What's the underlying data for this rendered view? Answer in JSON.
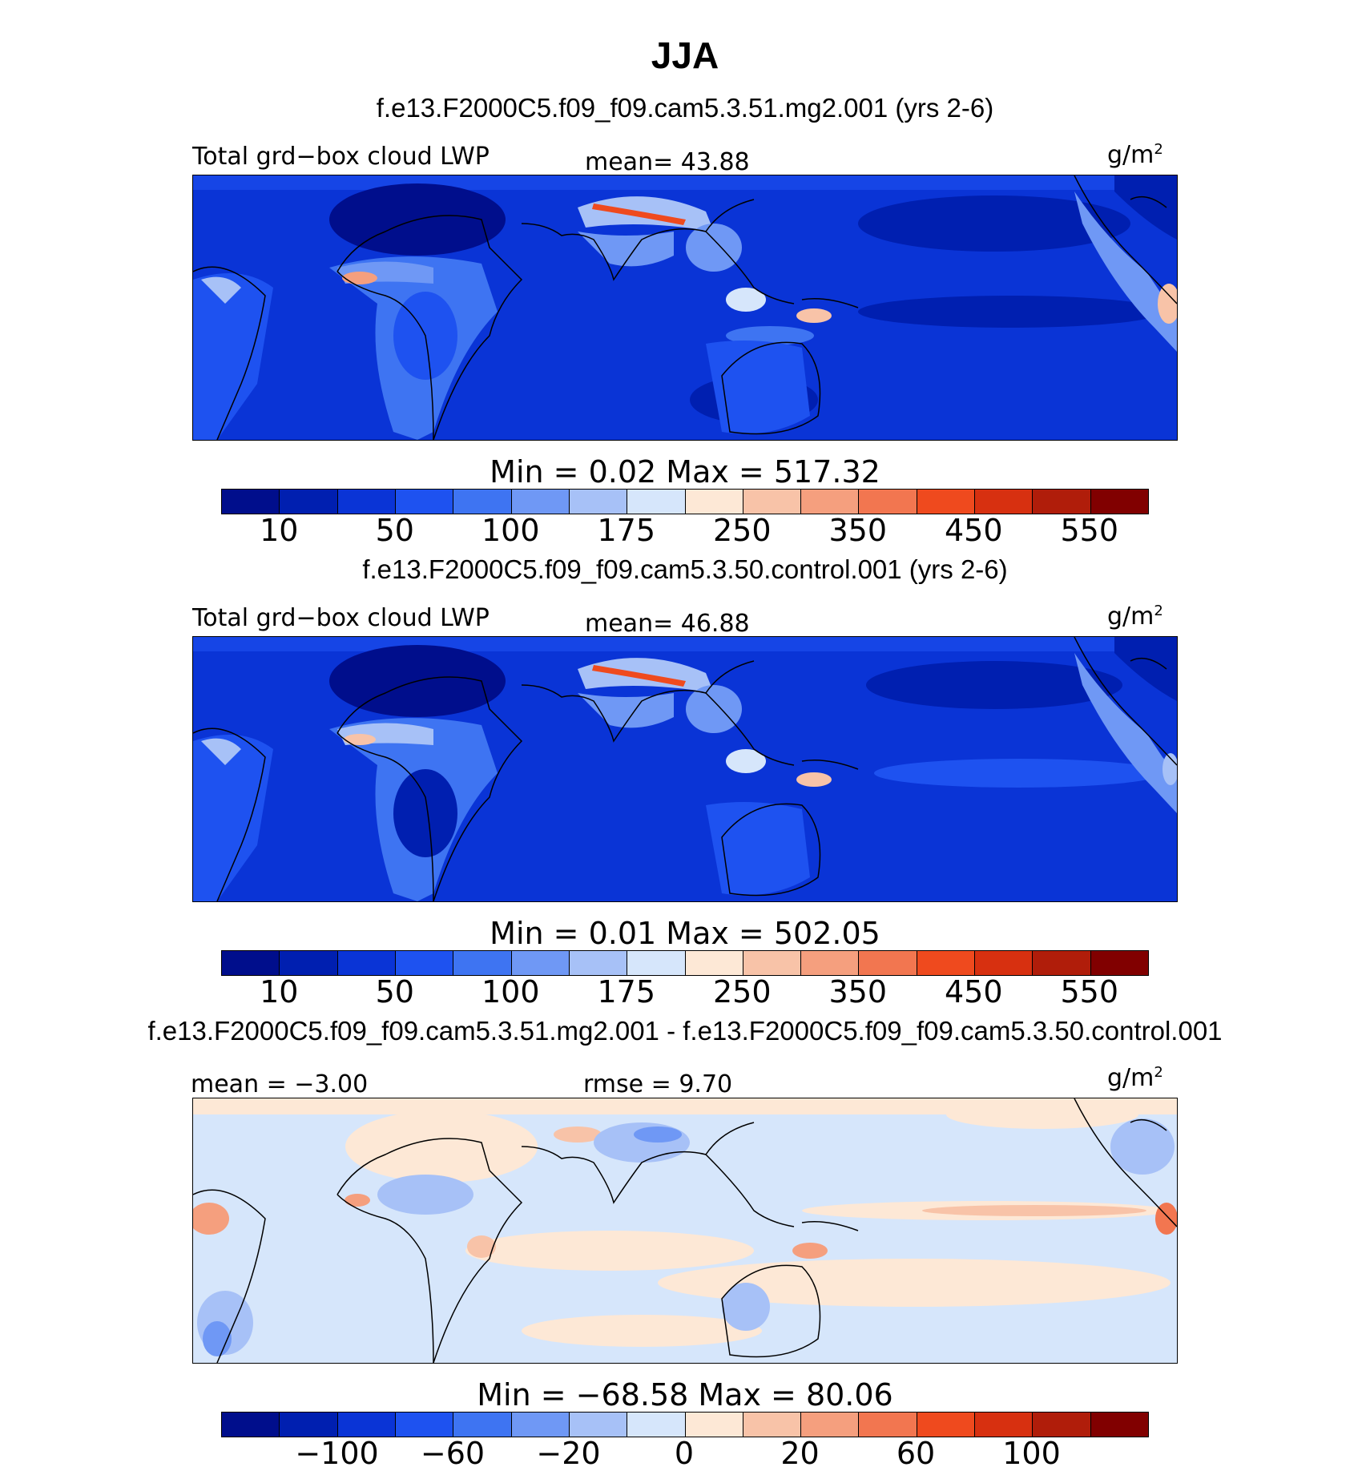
{
  "title": "JJA",
  "panels": [
    {
      "case": "f.e13.F2000C5.f09_f09.cam5.3.51.mg2.001 (yrs 2-6)",
      "left_label": "Total grd−box cloud LWP",
      "mid_label": "mean=   43.88",
      "units": "g/m",
      "units_exp": "2",
      "minmax": "Min =    0.02  Max = 517.32",
      "colorbar": {
        "colors": [
          "#000e8c",
          "#001fb0",
          "#0a34d6",
          "#1e52f0",
          "#3e74f2",
          "#6f98f5",
          "#a7c1f7",
          "#d6e6fb",
          "#fde8d6",
          "#f8c3a8",
          "#f59f7e",
          "#f27650",
          "#ef4a1e",
          "#d73010",
          "#b01d0a",
          "#810000"
        ],
        "tick_labels": [
          "10",
          "50",
          "100",
          "175",
          "250",
          "350",
          "450",
          "550"
        ]
      }
    },
    {
      "case": "f.e13.F2000C5.f09_f09.cam5.3.50.control.001 (yrs 2-6)",
      "left_label": "Total grd−box cloud LWP",
      "mid_label": "mean=   46.88",
      "units": "g/m",
      "units_exp": "2",
      "minmax": "Min =    0.01  Max = 502.05",
      "colorbar": {
        "colors": [
          "#000e8c",
          "#001fb0",
          "#0a34d6",
          "#1e52f0",
          "#3e74f2",
          "#6f98f5",
          "#a7c1f7",
          "#d6e6fb",
          "#fde8d6",
          "#f8c3a8",
          "#f59f7e",
          "#f27650",
          "#ef4a1e",
          "#d73010",
          "#b01d0a",
          "#810000"
        ],
        "tick_labels": [
          "10",
          "50",
          "100",
          "175",
          "250",
          "350",
          "450",
          "550"
        ]
      }
    },
    {
      "case": "f.e13.F2000C5.f09_f09.cam5.3.51.mg2.001 - f.e13.F2000C5.f09_f09.cam5.3.50.control.001",
      "left_label": "mean =  −3.00",
      "mid_label": "rmse =    9.70",
      "units": "g/m",
      "units_exp": "2",
      "minmax": "Min = −68.58  Max =   80.06",
      "colorbar": {
        "colors": [
          "#000e8c",
          "#001fb0",
          "#0a34d6",
          "#1e52f0",
          "#3e74f2",
          "#6f98f5",
          "#a7c1f7",
          "#d6e6fb",
          "#fde8d6",
          "#f8c3a8",
          "#f59f7e",
          "#f27650",
          "#ef4a1e",
          "#d73010",
          "#b01d0a",
          "#810000"
        ],
        "tick_labels": [
          "−100",
          "−60",
          "−20",
          "0",
          "20",
          "60",
          "100"
        ]
      }
    }
  ]
}
